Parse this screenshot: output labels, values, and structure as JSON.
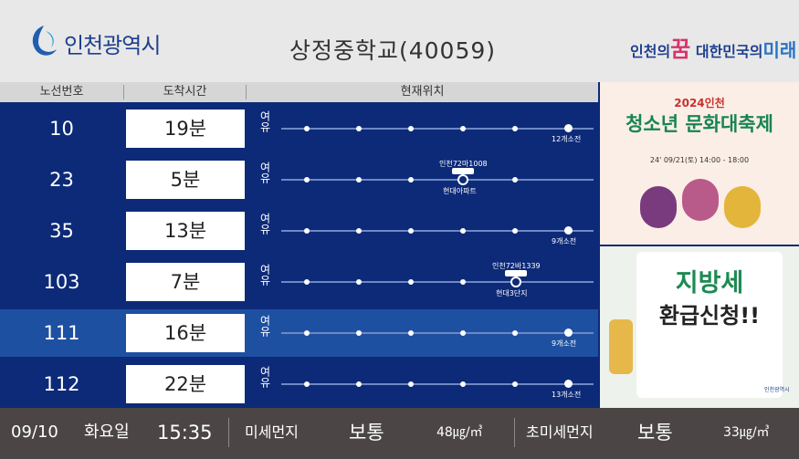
{
  "header": {
    "logo": "인천광역시",
    "title": "상정중학교(40059)",
    "slogan": {
      "a": "인천의",
      "b": "꿈",
      "c": "대한민국의",
      "d": "미래"
    }
  },
  "table": {
    "columns": [
      "노선번호",
      "도착시간",
      "현재위치"
    ],
    "rows": [
      {
        "route": "10",
        "arrival": "19분",
        "status": "여유",
        "location": "12개소전"
      },
      {
        "route": "23",
        "arrival": "5분",
        "status": "여유",
        "bus": "인천72마1008",
        "stop": "현대아파트"
      },
      {
        "route": "35",
        "arrival": "13분",
        "status": "여유",
        "location": "9개소전"
      },
      {
        "route": "103",
        "arrival": "7분",
        "status": "여유",
        "bus": "인천72바1339",
        "stop": "현대3단지"
      },
      {
        "route": "111",
        "arrival": "16분",
        "status": "여유",
        "location": "9개소전"
      },
      {
        "route": "112",
        "arrival": "22분",
        "status": "여유",
        "location": "13개소전"
      }
    ]
  },
  "ads": [
    {
      "year": "2024인천",
      "title": "청소년 문화대축제",
      "date": "24' 09/21(토) 14:00 - 18:00"
    },
    {
      "title": "지방세",
      "subtitle": "환급신청!!",
      "org": "인천광역시"
    }
  ],
  "footer": {
    "date": "09/10",
    "weekday": "화요일",
    "time": "15:35",
    "dust_label": "미세먼지",
    "dust_level": "보통",
    "dust_value": "48㎍/㎥",
    "fine_label": "초미세먼지",
    "fine_level": "보통",
    "fine_value": "33㎍/㎥"
  }
}
